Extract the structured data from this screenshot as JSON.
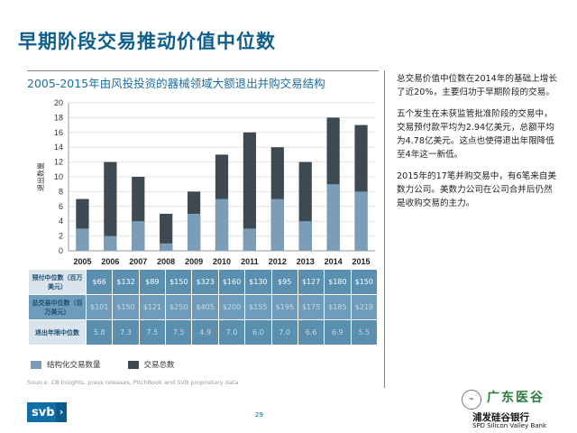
{
  "slide": {
    "title": "早期阶段交易推动价值中位数",
    "page_number": "29",
    "source": "Source: CB Insights, press releases, PitchBook and SVB proprietary data",
    "logo_text": "svb",
    "watermark": {
      "top": "广东医谷",
      "bank": "浦发硅谷银行",
      "bank_en": "SPD Silicon Valley Bank"
    }
  },
  "side_notes": [
    "总交易价值中位数在2014年的基础上增长了近20%，主要归功于早期阶段的交易。",
    "五个发生在未获监管批准阶段的交易中，交易预付款平均为2.94亿美元，总额平均为4.78亿美元。这点也使得退出年限降低至4年这一新低。",
    "2015年的17笔并购交易中，有6笔来自美数力公司。美数力公司在公司合并后仍然是收购交易的主力。"
  ],
  "metrics_table": {
    "rows": [
      {
        "label": "预付中位数（百万美元）",
        "values": [
          "$66",
          "$132",
          "$89",
          "$150",
          "$323",
          "$160",
          "$130",
          "$95",
          "$127",
          "$180",
          "$150"
        ],
        "dim": false
      },
      {
        "label": "总交易中位数（百万美元）",
        "values": [
          "$101",
          "$150",
          "$121",
          "$250",
          "$405",
          "$200",
          "$155",
          "$195",
          "$175",
          "$185",
          "$219"
        ],
        "dim": true
      },
      {
        "label": "退出年限中位数",
        "values": [
          "5.8",
          "7.3",
          "7.5",
          "7.5",
          "4.9",
          "7.0",
          "6.0",
          "7.0",
          "6.6",
          "6.9",
          "5.5"
        ],
        "dim": true
      }
    ]
  },
  "chart_data": {
    "type": "bar",
    "title": "2005-2015年由风投投资的器械领域大额退出并购交易结构",
    "ylabel": "退出数量",
    "xlabel": "",
    "ylim": [
      0,
      20
    ],
    "yticks": [
      0,
      2,
      4,
      6,
      8,
      10,
      12,
      14,
      16,
      18,
      20
    ],
    "categories": [
      "2005",
      "2006",
      "2007",
      "2008",
      "2009",
      "2010",
      "2011",
      "2012",
      "2013",
      "2014",
      "2015"
    ],
    "series": [
      {
        "name": "结构化交易数量",
        "values": [
          3,
          2,
          4,
          1,
          5,
          7,
          3,
          7,
          4,
          9,
          8
        ],
        "color": "#7b9db8"
      },
      {
        "name": "交易总数",
        "values": [
          7,
          12,
          10,
          5,
          8,
          13,
          16,
          14,
          12,
          18,
          17
        ],
        "color": "#3d4a52"
      }
    ],
    "legend_position": "bottom-left",
    "grid": true
  }
}
